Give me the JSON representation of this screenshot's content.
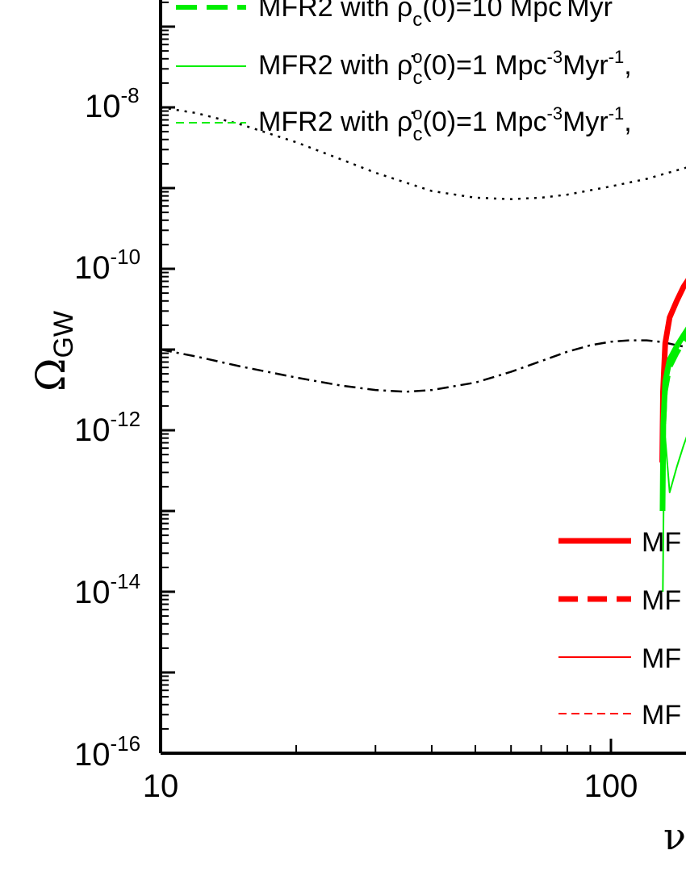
{
  "chart_data": {
    "type": "line",
    "xscale": "log",
    "yscale": "log",
    "xlim": [
      10,
      155
    ],
    "ylim": [
      1e-16,
      1e-06
    ],
    "x_ticks": [
      {
        "value": 10,
        "label": "10"
      },
      {
        "value": 100,
        "label": "100"
      }
    ],
    "y_ticks": [
      {
        "value": 1e-08,
        "mantissa": "10",
        "exponent": "-8"
      },
      {
        "value": 1e-10,
        "mantissa": "10",
        "exponent": "-10"
      },
      {
        "value": 1e-12,
        "mantissa": "10",
        "exponent": "-12"
      },
      {
        "value": 1e-14,
        "mantissa": "10",
        "exponent": "-14"
      },
      {
        "value": 1e-16,
        "mantissa": "10",
        "exponent": "-16"
      }
    ],
    "ylabel": {
      "symbol": "Ω",
      "subscript": "GW"
    },
    "xlabel": {
      "symbol": "ν"
    },
    "green_legend": [
      {
        "color": "#00ee00",
        "style": "thick-dashed",
        "text": "MFR2 with ρ_c(0)=10 Mpc Myr"
      },
      {
        "color": "#00ee00",
        "style": "thin-solid",
        "text": "MFR2 with ρ̇°_c(0)=1 Mpc⁻³Myr⁻¹,"
      },
      {
        "color": "#00ee00",
        "style": "thin-dashed",
        "text": "MFR2 with ρ̇°_c(0)=1 Mpc⁻³Myr⁻¹,"
      }
    ],
    "red_legend": [
      {
        "color": "#ff0000",
        "style": "thick-solid",
        "text": "MF"
      },
      {
        "color": "#ff0000",
        "style": "thick-dashed",
        "text": "MF"
      },
      {
        "color": "#ff0000",
        "style": "thin-solid",
        "text": "MF"
      },
      {
        "color": "#ff0000",
        "style": "thin-dashed",
        "text": "MF"
      }
    ],
    "series": [
      {
        "color": "#000000",
        "style": "dotted",
        "x": [
          10,
          12,
          15,
          20,
          25,
          30,
          40,
          50,
          60,
          70,
          80,
          100,
          120,
          155
        ],
        "y": [
          1e-08,
          8.5e-09,
          6.2e-09,
          3.7e-09,
          2.3e-09,
          1.55e-09,
          9.2e-10,
          7.6e-10,
          7.3e-10,
          7.6e-10,
          8.3e-10,
          1.05e-09,
          1.3e-09,
          1.95e-09
        ]
      },
      {
        "color": "#000000",
        "style": "dash-dot",
        "x": [
          10,
          12,
          15,
          20,
          25,
          30,
          35,
          40,
          50,
          60,
          70,
          80,
          90,
          100,
          110,
          120,
          130,
          140,
          155
        ],
        "y": [
          1e-11,
          8.2e-12,
          6.2e-12,
          4.5e-12,
          3.6e-12,
          3.15e-12,
          3e-12,
          3.15e-12,
          3.9e-12,
          5.3e-12,
          7.2e-12,
          9.4e-12,
          1.13e-11,
          1.25e-11,
          1.3e-11,
          1.3e-11,
          1.24e-11,
          1.13e-11,
          1.02e-11
        ]
      },
      {
        "color": "#ff0000",
        "style": "thick-solid",
        "x": [
          130,
          130.5,
          132,
          135,
          140,
          145,
          150,
          155
        ],
        "y": [
          4e-13,
          3e-12,
          1.2e-11,
          2.5e-11,
          4e-11,
          6e-11,
          8e-11,
          1.05e-10
        ]
      },
      {
        "color": "#00ee00",
        "style": "thick-solid",
        "x": [
          130.2,
          130.7,
          132,
          135,
          140,
          145,
          150,
          155
        ],
        "y": [
          1e-13,
          1.2e-12,
          4e-12,
          7.5e-12,
          1.1e-11,
          1.5e-11,
          2e-11,
          2.8e-11
        ]
      },
      {
        "color": "#00ee00",
        "style": "thick-dashed",
        "x": [
          130.2,
          130.8,
          132,
          135,
          140,
          145,
          150,
          155
        ],
        "y": [
          1e-13,
          1e-12,
          3e-12,
          6e-12,
          9e-12,
          1.25e-11,
          1.6e-11,
          2.1e-11
        ]
      },
      {
        "color": "#00ee00",
        "style": "thin-solid",
        "x": [
          130.4,
          131,
          132,
          135,
          140,
          145,
          150,
          155
        ],
        "y": [
          1e-14,
          2e-13,
          8e-13,
          1.7e-13,
          3.5e-13,
          6.5e-13,
          1.1e-12,
          1.9e-12
        ]
      }
    ]
  }
}
